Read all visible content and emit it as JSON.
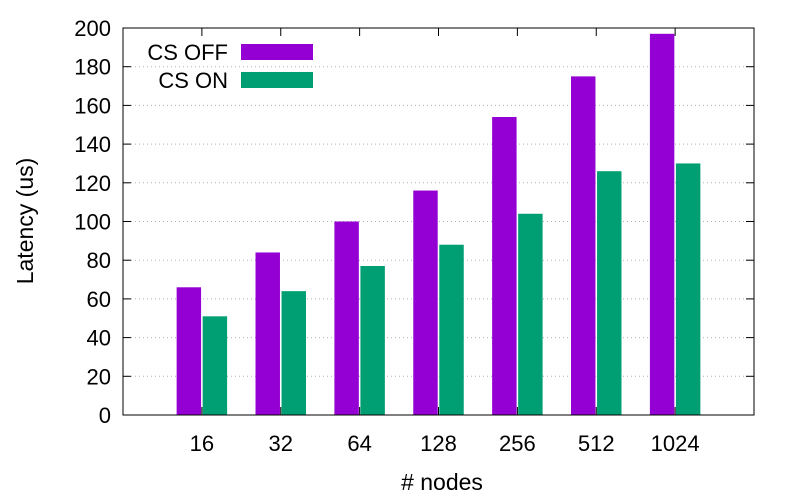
{
  "chart_data": {
    "type": "bar",
    "categories": [
      "16",
      "32",
      "64",
      "128",
      "256",
      "512",
      "1024"
    ],
    "series": [
      {
        "name": "CS OFF",
        "values": [
          66,
          84,
          100,
          116,
          154,
          175,
          197
        ],
        "color": "#9400d3"
      },
      {
        "name": "CS ON",
        "values": [
          51,
          64,
          77,
          88,
          104,
          126,
          130
        ],
        "color": "#009e73"
      }
    ],
    "title": "",
    "xlabel": "# nodes",
    "ylabel": "Latency (us)",
    "ylim": [
      0,
      200
    ],
    "yticks": [
      0,
      20,
      40,
      60,
      80,
      100,
      120,
      140,
      160,
      180,
      200
    ],
    "grid": true,
    "legend_position": "top-left"
  }
}
